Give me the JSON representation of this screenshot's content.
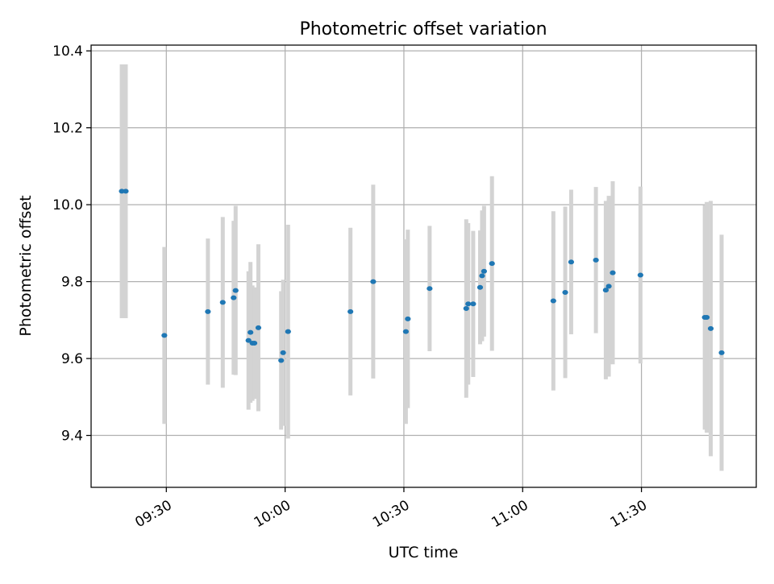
{
  "chart_data": {
    "type": "scatter",
    "title": "Photometric offset variation",
    "xlabel": "UTC time",
    "ylabel": "Photometric offset",
    "grid": true,
    "x_ticks": [
      "09:30",
      "10:00",
      "10:30",
      "11:00",
      "11:30"
    ],
    "y_ticks": [
      "9.4",
      "9.6",
      "9.8",
      "10.0",
      "10.2",
      "10.4"
    ],
    "xlim": [
      "09:11:00",
      "11:59:00"
    ],
    "ylim": [
      9.265,
      10.415
    ],
    "colors": {
      "point": "#1f77b4",
      "error_bar": "#d3d3d3",
      "grid": "#b0b0b0"
    },
    "points": [
      {
        "time": "09:18:45",
        "y": 10.035,
        "err": 0.33
      },
      {
        "time": "09:19:45",
        "y": 10.035,
        "err": 0.33
      },
      {
        "time": "09:29:30",
        "y": 9.66,
        "err": 0.23
      },
      {
        "time": "09:40:30",
        "y": 9.722,
        "err": 0.19
      },
      {
        "time": "09:44:15",
        "y": 9.746,
        "err": 0.222
      },
      {
        "time": "09:47:00",
        "y": 9.758,
        "err": 0.2
      },
      {
        "time": "09:47:30",
        "y": 9.777,
        "err": 0.22
      },
      {
        "time": "09:50:45",
        "y": 9.647,
        "err": 0.18
      },
      {
        "time": "09:51:15",
        "y": 9.668,
        "err": 0.183
      },
      {
        "time": "09:51:45",
        "y": 9.64,
        "err": 0.15
      },
      {
        "time": "09:52:15",
        "y": 9.64,
        "err": 0.145
      },
      {
        "time": "09:53:15",
        "y": 9.68,
        "err": 0.217
      },
      {
        "time": "09:59:00",
        "y": 9.595,
        "err": 0.18
      },
      {
        "time": "09:59:30",
        "y": 9.615,
        "err": 0.19
      },
      {
        "time": "10:00:45",
        "y": 9.67,
        "err": 0.278
      },
      {
        "time": "10:16:30",
        "y": 9.722,
        "err": 0.218
      },
      {
        "time": "10:22:15",
        "y": 9.8,
        "err": 0.252
      },
      {
        "time": "10:30:30",
        "y": 9.67,
        "err": 0.24
      },
      {
        "time": "10:31:00",
        "y": 9.703,
        "err": 0.232
      },
      {
        "time": "10:36:30",
        "y": 9.782,
        "err": 0.163
      },
      {
        "time": "10:45:45",
        "y": 9.73,
        "err": 0.232
      },
      {
        "time": "10:46:15",
        "y": 9.742,
        "err": 0.21
      },
      {
        "time": "10:47:30",
        "y": 9.742,
        "err": 0.19
      },
      {
        "time": "10:49:15",
        "y": 9.785,
        "err": 0.148
      },
      {
        "time": "10:49:45",
        "y": 9.815,
        "err": 0.17
      },
      {
        "time": "10:50:15",
        "y": 9.827,
        "err": 0.17
      },
      {
        "time": "10:52:15",
        "y": 9.847,
        "err": 0.227
      },
      {
        "time": "11:07:45",
        "y": 9.75,
        "err": 0.233
      },
      {
        "time": "11:10:45",
        "y": 9.772,
        "err": 0.223
      },
      {
        "time": "11:12:15",
        "y": 9.851,
        "err": 0.188
      },
      {
        "time": "11:18:30",
        "y": 9.856,
        "err": 0.19
      },
      {
        "time": "11:21:00",
        "y": 9.778,
        "err": 0.232
      },
      {
        "time": "11:21:45",
        "y": 9.788,
        "err": 0.235
      },
      {
        "time": "11:22:45",
        "y": 9.823,
        "err": 0.238
      },
      {
        "time": "11:29:45",
        "y": 9.817,
        "err": 0.23
      },
      {
        "time": "11:46:00",
        "y": 9.707,
        "err": 0.292
      },
      {
        "time": "11:46:30",
        "y": 9.707,
        "err": 0.3
      },
      {
        "time": "11:47:30",
        "y": 9.678,
        "err": 0.332
      },
      {
        "time": "11:50:15",
        "y": 9.615,
        "err": 0.307
      }
    ]
  }
}
